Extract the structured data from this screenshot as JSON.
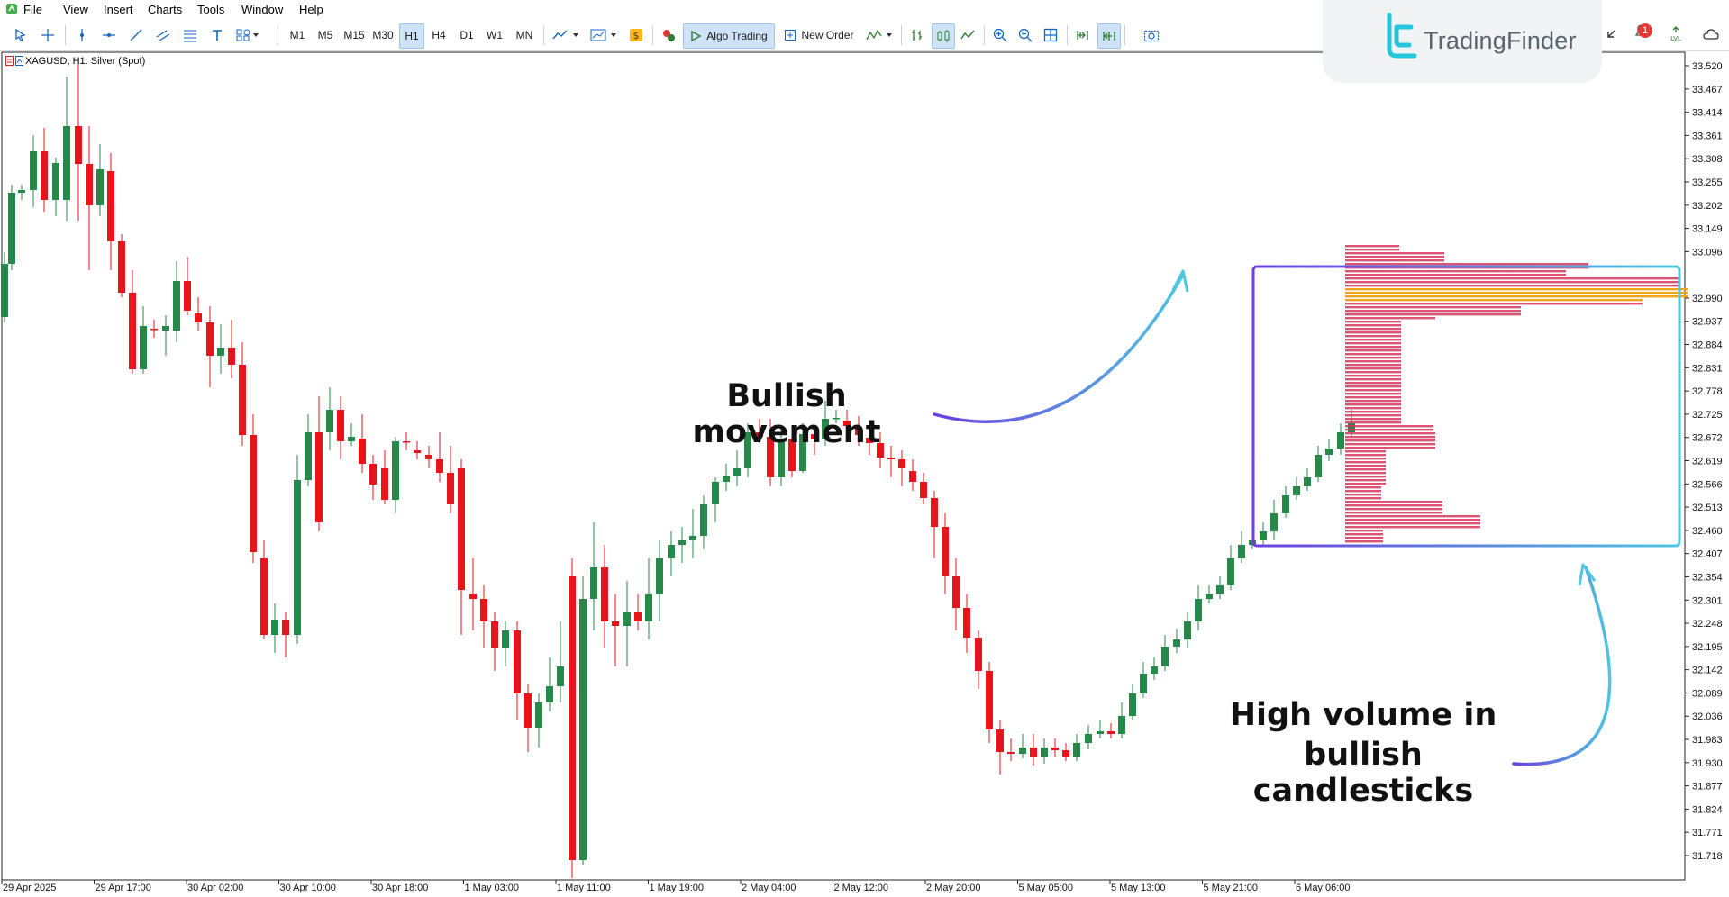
{
  "menu": [
    "File",
    "View",
    "Insert",
    "Charts",
    "Tools",
    "Window",
    "Help"
  ],
  "toolbar": {
    "timeframes": [
      "M1",
      "M5",
      "M15",
      "M30",
      "H1",
      "H4",
      "D1",
      "W1",
      "MN"
    ],
    "active_timeframe": "H1",
    "algo_trading_label": "Algo Trading",
    "new_order_label": "New Order"
  },
  "chart": {
    "title": "XAGUSD, H1:  Silver (Spot)",
    "price_axis": [
      "33.520",
      "33.467",
      "33.414",
      "33.361",
      "33.308",
      "33.255",
      "33.202",
      "33.149",
      "33.096",
      "32.990",
      "32.937",
      "32.884",
      "32.831",
      "32.778",
      "32.725",
      "32.672",
      "32.619",
      "32.566",
      "32.513",
      "32.460",
      "32.407",
      "32.354",
      "32.301",
      "32.248",
      "32.195",
      "32.142",
      "32.089",
      "32.036",
      "31.983",
      "31.930",
      "31.877",
      "31.824",
      "31.771",
      "31.718"
    ],
    "time_axis": [
      "29 Apr 2025",
      "29 Apr 17:00",
      "30 Apr 02:00",
      "30 Apr 10:00",
      "30 Apr 18:00",
      "1 May 03:00",
      "1 May 11:00",
      "1 May 19:00",
      "2 May 04:00",
      "2 May 12:00",
      "2 May 20:00",
      "5 May 05:00",
      "5 May 13:00",
      "5 May 21:00",
      "6 May 06:00"
    ],
    "colors": {
      "bull": "#26894a",
      "bear": "#e8131b",
      "profile": "#d4365a",
      "poc": "#f5a31a"
    }
  },
  "annotations": {
    "bullish_movement": "Bullish movement",
    "high_volume_line1": "High volume in",
    "high_volume_line2": "bullish candlesticks"
  },
  "brand": {
    "name": "TradingFinder"
  },
  "notifications": {
    "count": "1"
  }
}
